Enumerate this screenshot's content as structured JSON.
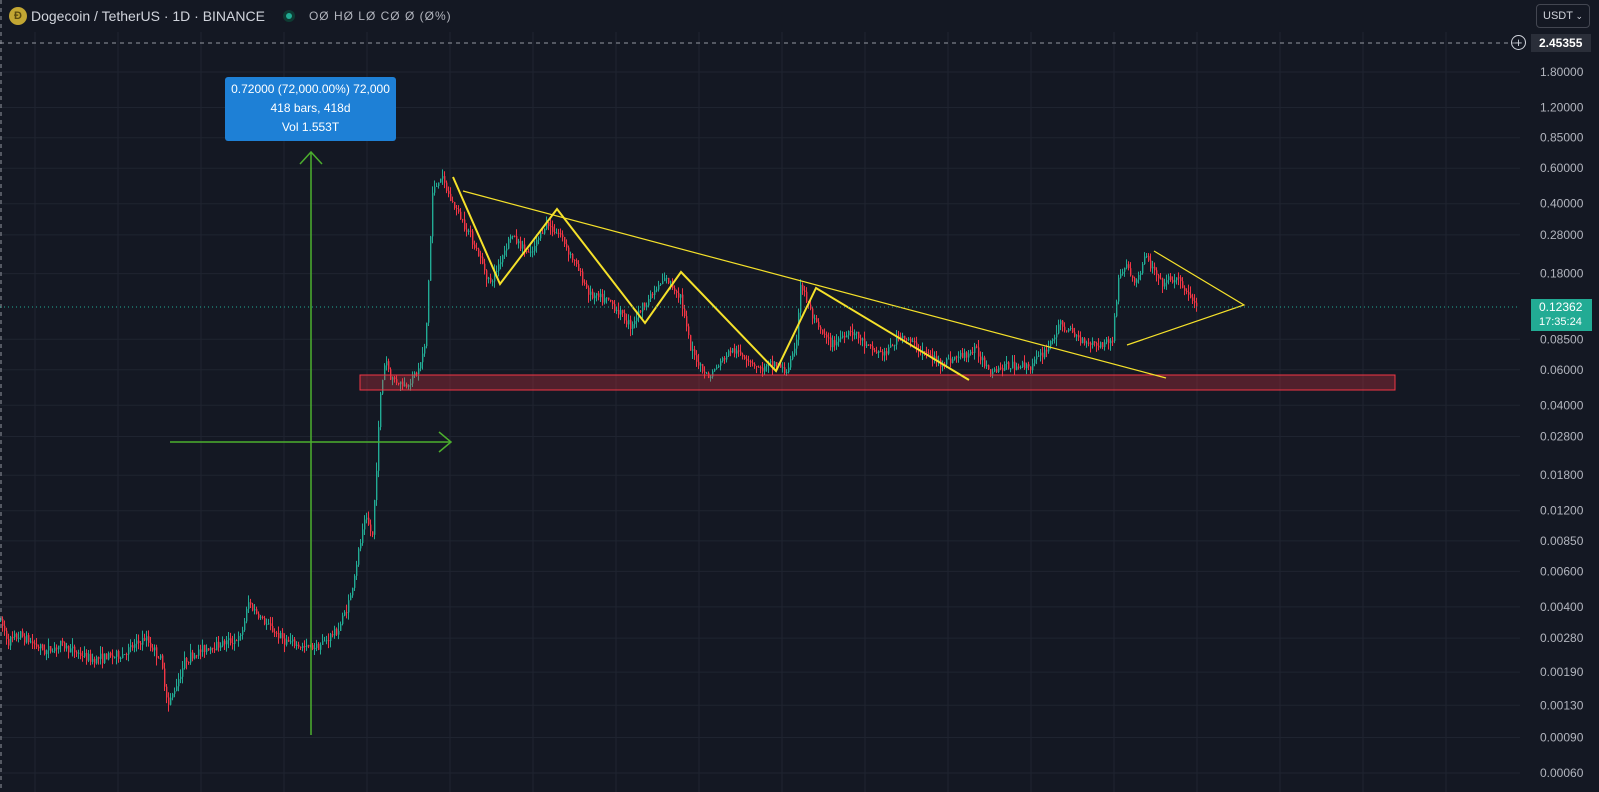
{
  "header": {
    "coin_glyph": "Ð",
    "symbol": "Dogecoin / TetherUS · 1D · BINANCE",
    "ohlc": "OØ HØ LØ CØ Ø (Ø%)"
  },
  "currency_select": {
    "value": "USDT",
    "chevron": "⌄"
  },
  "cursor_price_label": "2.45355",
  "plus_glyph": "+",
  "last_price": {
    "value": "0.12362",
    "countdown": "17:35:24"
  },
  "measure_tooltip": {
    "line1": "0.72000 (72,000.00%) 72,000",
    "line2": "418 bars, 418d",
    "line3": "Vol 1.553T"
  },
  "colors": {
    "background": "#141823",
    "up": "#22ab94",
    "down": "#f23645",
    "pattern": "#f5e12a",
    "measure": "#4caf2e",
    "support_zone": "#f23645",
    "tooltip": "#1e80d6"
  },
  "chart_data": {
    "type": "candlestick",
    "scale": "log",
    "ylim": [
      0.0005,
      3.2
    ],
    "y_ticks": [
      "1.80000",
      "1.20000",
      "0.85000",
      "0.60000",
      "0.40000",
      "0.28000",
      "0.18000",
      "0.08500",
      "0.06000",
      "0.04000",
      "0.02800",
      "0.01800",
      "0.01200",
      "0.00850",
      "0.00600",
      "0.00400",
      "0.00280",
      "0.00190",
      "0.00130",
      "0.00090",
      "0.00060"
    ],
    "last_price": 0.12362,
    "price_path": [
      [
        0,
        0.0034
      ],
      [
        8,
        0.0027
      ],
      [
        20,
        0.0029
      ],
      [
        45,
        0.0024
      ],
      [
        60,
        0.0026
      ],
      [
        90,
        0.0022
      ],
      [
        120,
        0.0023
      ],
      [
        145,
        0.0028
      ],
      [
        160,
        0.0022
      ],
      [
        168,
        0.0013
      ],
      [
        185,
        0.0022
      ],
      [
        205,
        0.0025
      ],
      [
        240,
        0.0028
      ],
      [
        248,
        0.0042
      ],
      [
        265,
        0.0033
      ],
      [
        285,
        0.0027
      ],
      [
        305,
        0.0025
      ],
      [
        320,
        0.0026
      ],
      [
        338,
        0.0031
      ],
      [
        350,
        0.0045
      ],
      [
        358,
        0.0075
      ],
      [
        365,
        0.011
      ],
      [
        372,
        0.009
      ],
      [
        380,
        0.045
      ],
      [
        385,
        0.07
      ],
      [
        390,
        0.055
      ],
      [
        405,
        0.05
      ],
      [
        418,
        0.06
      ],
      [
        425,
        0.08
      ],
      [
        432,
        0.45
      ],
      [
        440,
        0.55
      ],
      [
        450,
        0.42
      ],
      [
        470,
        0.28
      ],
      [
        490,
        0.16
      ],
      [
        510,
        0.28
      ],
      [
        530,
        0.22
      ],
      [
        545,
        0.32
      ],
      [
        560,
        0.28
      ],
      [
        575,
        0.2
      ],
      [
        590,
        0.14
      ],
      [
        610,
        0.13
      ],
      [
        630,
        0.1
      ],
      [
        645,
        0.13
      ],
      [
        665,
        0.17
      ],
      [
        680,
        0.14
      ],
      [
        690,
        0.075
      ],
      [
        708,
        0.055
      ],
      [
        730,
        0.075
      ],
      [
        745,
        0.07
      ],
      [
        760,
        0.06
      ],
      [
        775,
        0.065
      ],
      [
        785,
        0.058
      ],
      [
        795,
        0.075
      ],
      [
        800,
        0.16
      ],
      [
        815,
        0.1
      ],
      [
        830,
        0.08
      ],
      [
        850,
        0.095
      ],
      [
        870,
        0.075
      ],
      [
        885,
        0.072
      ],
      [
        900,
        0.09
      ],
      [
        920,
        0.075
      ],
      [
        940,
        0.065
      ],
      [
        960,
        0.07
      ],
      [
        975,
        0.075
      ],
      [
        990,
        0.06
      ],
      [
        1010,
        0.063
      ],
      [
        1030,
        0.063
      ],
      [
        1045,
        0.075
      ],
      [
        1060,
        0.1
      ],
      [
        1080,
        0.085
      ],
      [
        1100,
        0.08
      ],
      [
        1112,
        0.085
      ],
      [
        1118,
        0.17
      ],
      [
        1125,
        0.2
      ],
      [
        1135,
        0.16
      ],
      [
        1145,
        0.22
      ],
      [
        1160,
        0.16
      ],
      [
        1175,
        0.17
      ],
      [
        1185,
        0.15
      ],
      [
        1192,
        0.13
      ],
      [
        1197,
        0.1236
      ]
    ]
  }
}
